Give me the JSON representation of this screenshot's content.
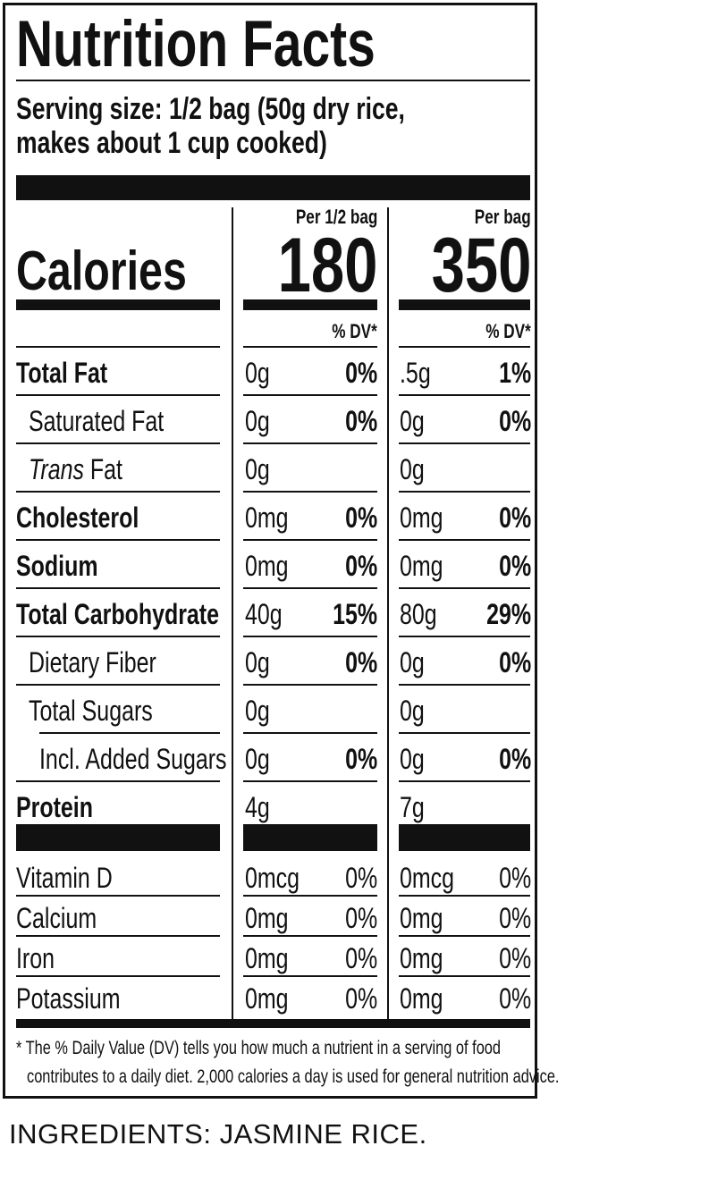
{
  "title": "Nutrition Facts",
  "serving": {
    "line1": "Serving size: 1/2 bag (50g dry rice,",
    "line2": "makes about 1 cup cooked)"
  },
  "columns": {
    "col1_header": "Per 1/2 bag",
    "col2_header": "Per bag",
    "dv_header": "% DV*"
  },
  "calories": {
    "label": "Calories",
    "col1": "180",
    "col2": "350"
  },
  "nutrients": [
    {
      "label": "Total Fat",
      "amt1": "0g",
      "dv1": "0%",
      "amt2": ".5g",
      "dv2": "1%"
    },
    {
      "label": "Saturated Fat",
      "amt1": "0g",
      "dv1": "0%",
      "amt2": "0g",
      "dv2": "0%"
    },
    {
      "label_italic": "Trans",
      "label": " Fat",
      "amt1": "0g",
      "dv1": "",
      "amt2": "0g",
      "dv2": ""
    },
    {
      "label": "Cholesterol",
      "amt1": "0mg",
      "dv1": "0%",
      "amt2": "0mg",
      "dv2": "0%"
    },
    {
      "label": "Sodium",
      "amt1": "0mg",
      "dv1": "0%",
      "amt2": "0mg",
      "dv2": "0%"
    },
    {
      "label": "Total Carbohydrate",
      "amt1": "40g",
      "dv1": "15%",
      "amt2": "80g",
      "dv2": "29%"
    },
    {
      "label": "Dietary Fiber",
      "amt1": "0g",
      "dv1": "0%",
      "amt2": "0g",
      "dv2": "0%"
    },
    {
      "label": "Total Sugars",
      "amt1": "0g",
      "dv1": "",
      "amt2": "0g",
      "dv2": ""
    },
    {
      "label": "Incl. Added Sugars",
      "amt1": "0g",
      "dv1": "0%",
      "amt2": "0g",
      "dv2": "0%"
    },
    {
      "label": "Protein",
      "amt1": "4g",
      "dv1": "",
      "amt2": "7g",
      "dv2": ""
    }
  ],
  "vitamins": [
    {
      "label": "Vitamin D",
      "amt1": "0mcg",
      "dv1": "0%",
      "amt2": "0mcg",
      "dv2": "0%"
    },
    {
      "label": "Calcium",
      "amt1": "0mg",
      "dv1": "0%",
      "amt2": "0mg",
      "dv2": "0%"
    },
    {
      "label": "Iron",
      "amt1": "0mg",
      "dv1": "0%",
      "amt2": "0mg",
      "dv2": "0%"
    },
    {
      "label": "Potassium",
      "amt1": "0mg",
      "dv1": "0%",
      "amt2": "0mg",
      "dv2": "0%"
    }
  ],
  "footnote": {
    "line1": "* The % Daily Value (DV) tells you how much a nutrient in a serving of food",
    "line2": "contributes to a daily diet. 2,000 calories a day is used for general nutrition advice."
  },
  "ingredients": "INGREDIENTS: JASMINE RICE."
}
